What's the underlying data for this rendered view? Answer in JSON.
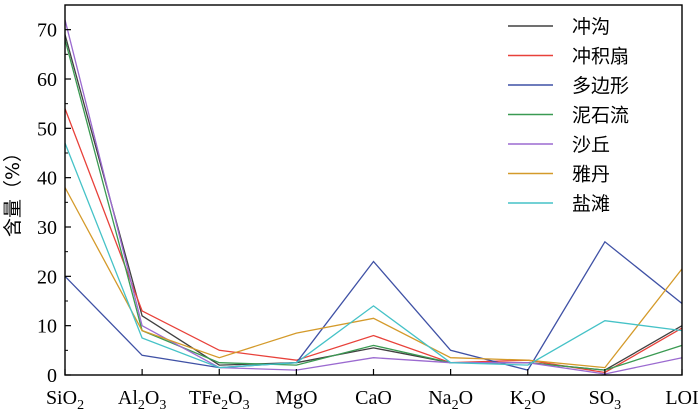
{
  "chart_data": {
    "type": "line",
    "title": "",
    "ylabel": "含量（%）",
    "xlabel": "",
    "ylim": [
      0,
      75
    ],
    "yticks": [
      0,
      10,
      20,
      30,
      40,
      50,
      60,
      70
    ],
    "grid": false,
    "legend_position": "top-right",
    "categories": [
      {
        "base": "SiO",
        "sub": "2",
        "after": ""
      },
      {
        "base": "Al",
        "sub": "2",
        "after": "O",
        "sub2": "3"
      },
      {
        "base": "TFe",
        "sub": "2",
        "after": "O",
        "sub2": "3"
      },
      {
        "base": "MgO",
        "sub": "",
        "after": ""
      },
      {
        "base": "CaO",
        "sub": "",
        "after": ""
      },
      {
        "base": "Na",
        "sub": "2",
        "after": "O"
      },
      {
        "base": "K",
        "sub": "2",
        "after": "O"
      },
      {
        "base": "SO",
        "sub": "3",
        "after": ""
      },
      {
        "base": "LOI",
        "sub": "",
        "after": ""
      }
    ],
    "series": [
      {
        "name": "冲沟",
        "color": "#404040",
        "values": [
          69.0,
          12.0,
          2.0,
          2.5,
          5.5,
          2.5,
          2.5,
          1.0,
          10.0
        ]
      },
      {
        "name": "冲积扇",
        "color": "#e8413a",
        "values": [
          54.0,
          13.0,
          5.0,
          3.0,
          8.0,
          2.5,
          3.0,
          0.5,
          9.5
        ]
      },
      {
        "name": "多边形",
        "color": "#3f51a5",
        "values": [
          20.0,
          4.0,
          1.5,
          2.5,
          23.0,
          5.0,
          1.0,
          27.0,
          14.5
        ]
      },
      {
        "name": "泥石流",
        "color": "#3a9a52",
        "values": [
          68.0,
          9.0,
          2.5,
          2.0,
          6.0,
          2.5,
          2.5,
          1.0,
          6.0
        ]
      },
      {
        "name": "沙丘",
        "color": "#9b6ad0",
        "values": [
          72.0,
          10.0,
          1.5,
          1.0,
          3.5,
          2.5,
          2.5,
          0.2,
          3.5
        ]
      },
      {
        "name": "雅丹",
        "color": "#d49a2a",
        "values": [
          38.0,
          9.0,
          3.5,
          8.5,
          11.5,
          3.5,
          3.0,
          1.5,
          21.5
        ]
      },
      {
        "name": "盐滩",
        "color": "#45c2c7",
        "values": [
          47.0,
          7.5,
          1.5,
          2.5,
          14.0,
          2.5,
          2.0,
          11.0,
          9.0
        ]
      }
    ]
  }
}
